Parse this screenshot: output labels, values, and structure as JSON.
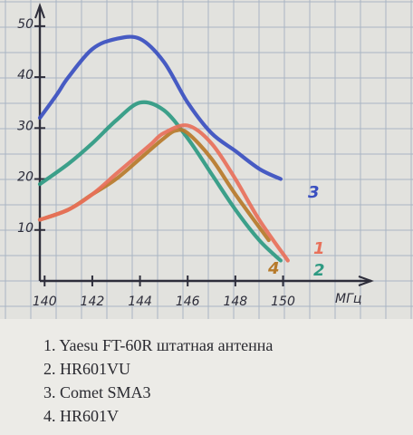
{
  "chart_data": {
    "type": "line",
    "title": "",
    "xlabel": "МГц",
    "ylabel": "",
    "xlim": [
      139.8,
      151.5
    ],
    "ylim": [
      0,
      53
    ],
    "x_ticks": [
      140,
      142,
      144,
      146,
      148,
      150
    ],
    "y_ticks": [
      10,
      20,
      30,
      40,
      50
    ],
    "grid": true,
    "series": [
      {
        "name": "1",
        "label": "1",
        "color": "#e8705a",
        "x": [
          139.8,
          141,
          142,
          143,
          144,
          144.5,
          145,
          146,
          147,
          148,
          149,
          150.2
        ],
        "y": [
          12,
          14,
          17,
          21,
          25,
          27,
          29,
          30.5,
          27,
          20,
          12,
          4
        ]
      },
      {
        "name": "2",
        "label": "2",
        "color": "#2e9a82",
        "x": [
          139.8,
          141,
          142,
          143,
          144,
          145,
          146,
          147,
          148,
          149,
          149.9
        ],
        "y": [
          19,
          23,
          27,
          31.5,
          35,
          33.5,
          28,
          21,
          14,
          8,
          4
        ]
      },
      {
        "name": "3",
        "label": "3",
        "color": "#3a4fc0",
        "x": [
          139.8,
          140.5,
          141,
          142,
          143,
          144,
          145,
          146,
          147,
          148,
          149,
          149.9
        ],
        "y": [
          32,
          36.5,
          40,
          45.5,
          47.5,
          47.5,
          43,
          35,
          29,
          25.5,
          22,
          20
        ]
      },
      {
        "name": "4",
        "label": "4",
        "color": "#b77a2a",
        "x": [
          139.8,
          141,
          142,
          143,
          144,
          145,
          145.5,
          146,
          147,
          148,
          149.4
        ],
        "y": [
          12,
          14,
          17,
          20,
          24,
          28,
          29.5,
          29,
          24,
          17,
          8
        ]
      }
    ]
  },
  "legend_entries": [
    "1. Yaesu FT-60R штатная антенна",
    "2. HR601VU",
    "3. Comet SMA3",
    "4. HR601V"
  ]
}
